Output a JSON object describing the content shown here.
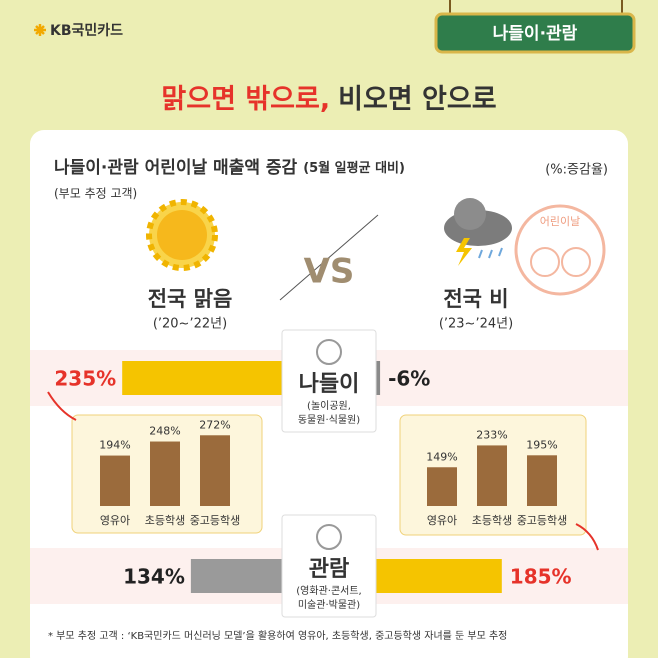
{
  "brand": "KB국민카드",
  "tag": "나들이·관람",
  "headline": {
    "part1": "맑으면 밖으로,",
    "part2": "비오면 안으로"
  },
  "title": "나들이·관람 어린이날 매출액 증감",
  "title_note": "(5월 일평균 대비)",
  "unit": "(%:증감율)",
  "subtitle": "(부모 추정 고객)",
  "vs": "VS",
  "stamp": "어린이날",
  "sunny": {
    "label": "전국 맑음",
    "period": "(’20~’22년)"
  },
  "rainy": {
    "label": "전국 비",
    "period": "(’23~’24년)"
  },
  "sections": [
    {
      "name": "나들이",
      "desc": [
        "(놀이공원,",
        "동물원·식물원)"
      ],
      "sunny": {
        "value": 235,
        "label": "235%",
        "color": "#f5c400",
        "text_color": "#e6332a",
        "breakdown": {
          "categories": [
            "영유아",
            "초등학생",
            "중고등학생"
          ],
          "values": [
            194,
            248,
            272
          ],
          "value_labels": [
            "194%",
            "248%",
            "272%"
          ],
          "color": "#9b6b3c"
        }
      },
      "rainy": {
        "value": -6,
        "label": "-6%",
        "color": "#8a8a8a",
        "text_color": "#222"
      }
    },
    {
      "name": "관람",
      "desc": [
        "(영화관·콘서트,",
        "미술관·박물관)"
      ],
      "sunny": {
        "value": 134,
        "label": "134%",
        "color": "#9a9a9a",
        "text_color": "#222"
      },
      "rainy": {
        "value": 185,
        "label": "185%",
        "color": "#f5c400",
        "text_color": "#e6332a",
        "breakdown": {
          "categories": [
            "영유아",
            "초등학생",
            "중고등학생"
          ],
          "values": [
            149,
            233,
            195
          ],
          "value_labels": [
            "149%",
            "233%",
            "195%"
          ],
          "color": "#9b6b3c"
        }
      }
    }
  ],
  "footnote": "* 부모 추정 고객 : ‘KB국민카드 머신러닝 모델’을 활용하여 영유아, 초등학생, 중고등학생 자녀를 둔 부모 추정"
}
